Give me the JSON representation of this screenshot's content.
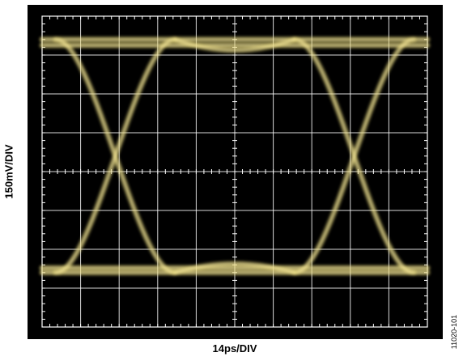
{
  "chart_data": {
    "type": "eye-diagram",
    "xlabel": "14ps/DIV",
    "ylabel": "150mV/DIV",
    "x_divisions": 10,
    "y_divisions": 8,
    "x_units_per_div": "14 ps",
    "y_units_per_div": "150 mV",
    "high_level_div": 3.4,
    "low_level_div": -2.6,
    "crossing_points_div": [
      [
        -3.1,
        0.0
      ],
      [
        3.1,
        0.0
      ]
    ],
    "trace_color": "#e8d878",
    "grid_color": "#ffffff",
    "background_color": "#000000"
  },
  "figure_id": "11020-101"
}
